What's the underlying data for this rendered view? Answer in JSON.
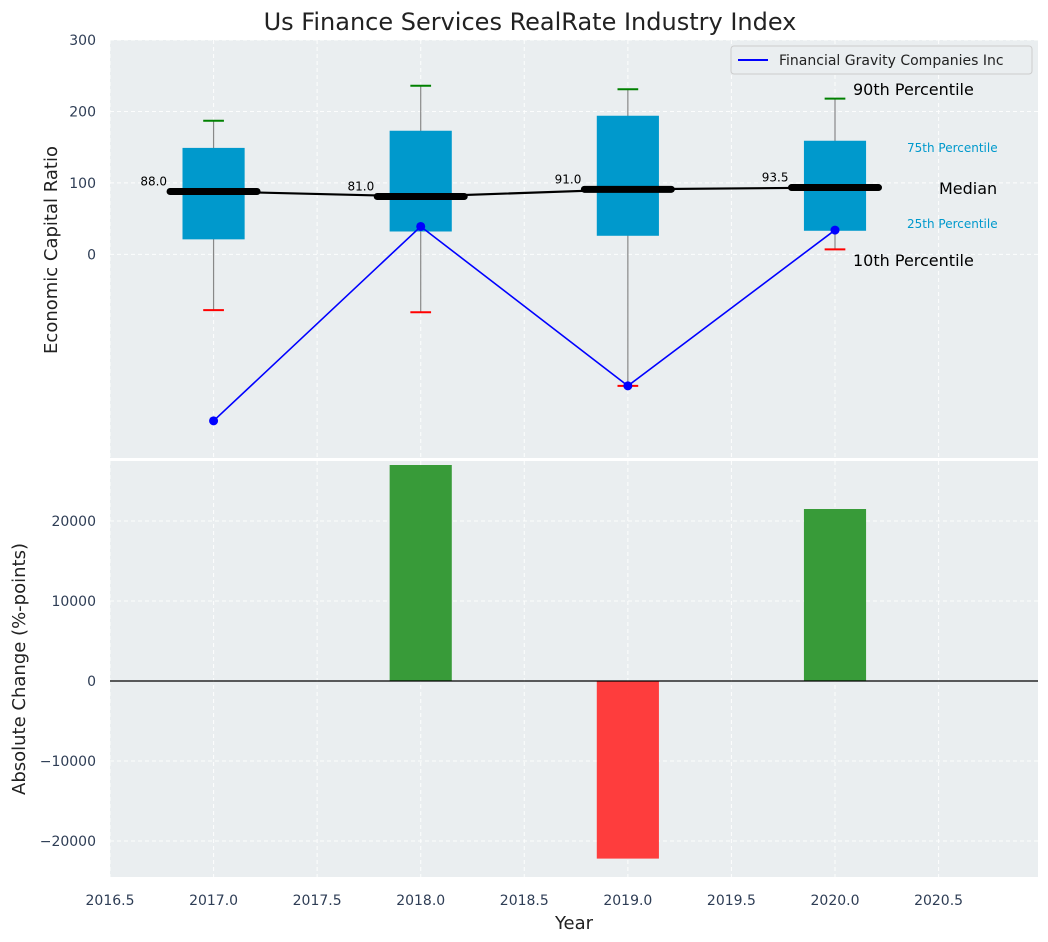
{
  "colors": {
    "panel_bg": "#eaeef0",
    "grid": "#ffffff",
    "box": "#0099cc",
    "median": "#000000",
    "whisker_top": "#008000",
    "whisker_bottom": "#ff0000",
    "company": "#0000ff",
    "pos_bar": "#2e962e",
    "neg_bar": "#ff3333",
    "tick_text": "#2e3d55",
    "label_text": "#222222"
  },
  "chart_data": [
    {
      "type": "box",
      "title": "Us Finance Services RealRate Industry Index",
      "ylabel": "Economic Capital Ratio",
      "xlim": [
        2016.5,
        2020.98
      ],
      "ylim": [
        -285,
        300
      ],
      "y_ticks": [
        0,
        100,
        200,
        300
      ],
      "y_tick_labels": [
        "0",
        "100",
        "200",
        "300"
      ],
      "grid": true,
      "boxes": [
        {
          "x": 2017,
          "p10": -78,
          "p25": 21,
          "median": 88,
          "p75": 149,
          "p90": 187,
          "median_label": "88.0"
        },
        {
          "x": 2018,
          "p10": -81,
          "p25": 32,
          "median": 81,
          "p75": 173,
          "p90": 236,
          "median_label": "81.0"
        },
        {
          "x": 2019,
          "p10": -184,
          "p25": 26,
          "median": 91,
          "p75": 194,
          "p90": 231,
          "median_label": "91.0"
        },
        {
          "x": 2020,
          "p10": 7,
          "p25": 33,
          "median": 93.5,
          "p75": 159,
          "p90": 218,
          "median_label": "93.5"
        }
      ],
      "company_series": {
        "name": "Financial Gravity Companies Inc",
        "x": [
          2017,
          2018,
          2019,
          2020
        ],
        "y": [
          -233,
          39,
          -184,
          34
        ]
      },
      "legend": {
        "position": "top-right",
        "entries": [
          "Financial Gravity Companies Inc"
        ]
      },
      "annotations": {
        "p90": "90th Percentile",
        "p75": "75th Percentile",
        "median": "Median",
        "p25": "25th Percentile",
        "p10": "10th Percentile"
      }
    },
    {
      "type": "bar",
      "xlabel": "Year",
      "ylabel": "Absolute Change (%-points)",
      "xlim": [
        2016.5,
        2020.98
      ],
      "ylim": [
        -24500,
        27500
      ],
      "x_ticks": [
        2016.5,
        2017.0,
        2017.5,
        2018.0,
        2018.5,
        2019.0,
        2019.5,
        2020.0,
        2020.5
      ],
      "x_tick_labels": [
        "2016.5",
        "2017.0",
        "2017.5",
        "2018.0",
        "2018.5",
        "2019.0",
        "2019.5",
        "2020.0",
        "2020.5"
      ],
      "y_ticks": [
        -20000,
        -10000,
        0,
        10000,
        20000
      ],
      "y_tick_labels": [
        "−20000",
        "−10000",
        "0",
        "10000",
        "20000"
      ],
      "grid": true,
      "x": [
        2018,
        2019,
        2020
      ],
      "values": [
        27000,
        -22200,
        21500
      ]
    }
  ]
}
